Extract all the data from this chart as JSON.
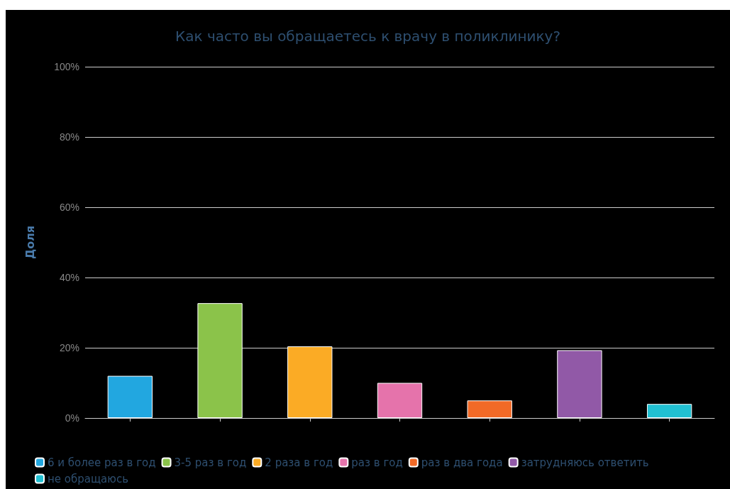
{
  "chart_data": {
    "type": "bar",
    "title": "Как часто вы обращаетесь к врачу в поликлинику?",
    "ylabel": "Доля",
    "categories": [
      null,
      null,
      null,
      null,
      null,
      null,
      null
    ],
    "series": [
      {
        "name": "6 и более раз в год",
        "color": "#22a7e0",
        "values": [
          12,
          null,
          null,
          null,
          null,
          null,
          null
        ]
      },
      {
        "name": "3-5 раз в год",
        "color": "#8bc34a",
        "values": [
          null,
          32.7,
          null,
          null,
          null,
          null,
          null
        ]
      },
      {
        "name": "2 раза в год",
        "color": "#fbab25",
        "values": [
          null,
          null,
          20.4,
          null,
          null,
          null,
          null
        ]
      },
      {
        "name": "раз в год",
        "color": "#e573ab",
        "values": [
          null,
          null,
          null,
          10,
          null,
          null,
          null
        ]
      },
      {
        "name": "раз в два года",
        "color": "#f26a27",
        "values": [
          null,
          null,
          null,
          null,
          5,
          null,
          null
        ]
      },
      {
        "name": "затрудняюсь ответить",
        "color": "#9159a7",
        "values": [
          null,
          null,
          null,
          null,
          null,
          19.3,
          null
        ]
      },
      {
        "name": "не обращаюсь",
        "color": "#21c0d2",
        "values": [
          null,
          null,
          null,
          null,
          null,
          null,
          4
        ]
      }
    ],
    "ylim": [
      0,
      100
    ],
    "yticks": [
      {
        "value": 0,
        "label": "0%"
      },
      {
        "value": 20,
        "label": "20%"
      },
      {
        "value": 40,
        "label": "40%"
      },
      {
        "value": 60,
        "label": "60%"
      },
      {
        "value": 80,
        "label": "80%"
      },
      {
        "value": 100,
        "label": "100%"
      }
    ],
    "grid": "y",
    "legend": "bottom"
  }
}
